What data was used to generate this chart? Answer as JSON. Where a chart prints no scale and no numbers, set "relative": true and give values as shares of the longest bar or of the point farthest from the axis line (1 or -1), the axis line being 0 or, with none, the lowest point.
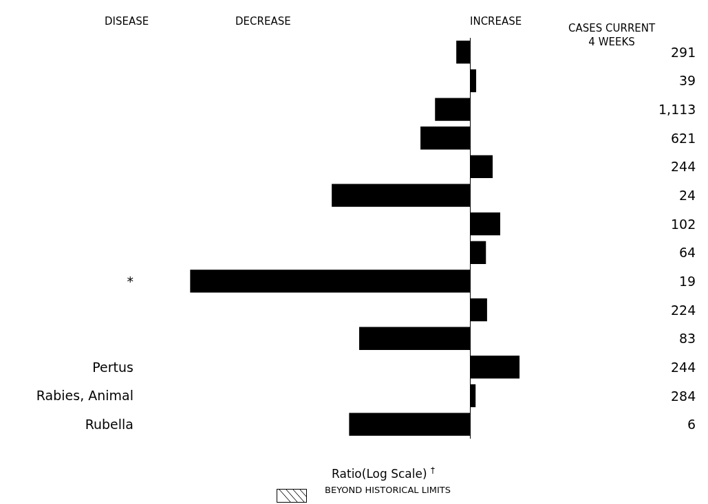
{
  "chart_data": {
    "type": "bar",
    "orientation": "horizontal",
    "relative": true,
    "ylabel": "DISEASE",
    "xlabel": "Ratio(Log Scale) $^{†}$",
    "categories": [
      null,
      null,
      null,
      null,
      null,
      null,
      null,
      null,
      "*",
      null,
      null,
      "Pertus",
      "Rabies, Animal",
      "Rubella"
    ],
    "values": [
      -0.049,
      0.022,
      -0.125,
      -0.177,
      0.081,
      -0.494,
      0.108,
      0.057,
      -1,
      0.061,
      -0.396,
      0.177,
      0.02,
      -0.432
    ],
    "color": "#000000",
    "annotations": [
      "DECREASE",
      "INCREASE",
      "CASES CURRENT\n4 WEEKS",
      "BEYOND HISTORICAL LIMITS",
      "291",
      "39",
      "1,113",
      "621",
      "244",
      "24",
      "102",
      "64",
      "19",
      "224",
      "83",
      "244",
      "284",
      "6"
    ],
    "grid": false,
    "legend": false
  }
}
